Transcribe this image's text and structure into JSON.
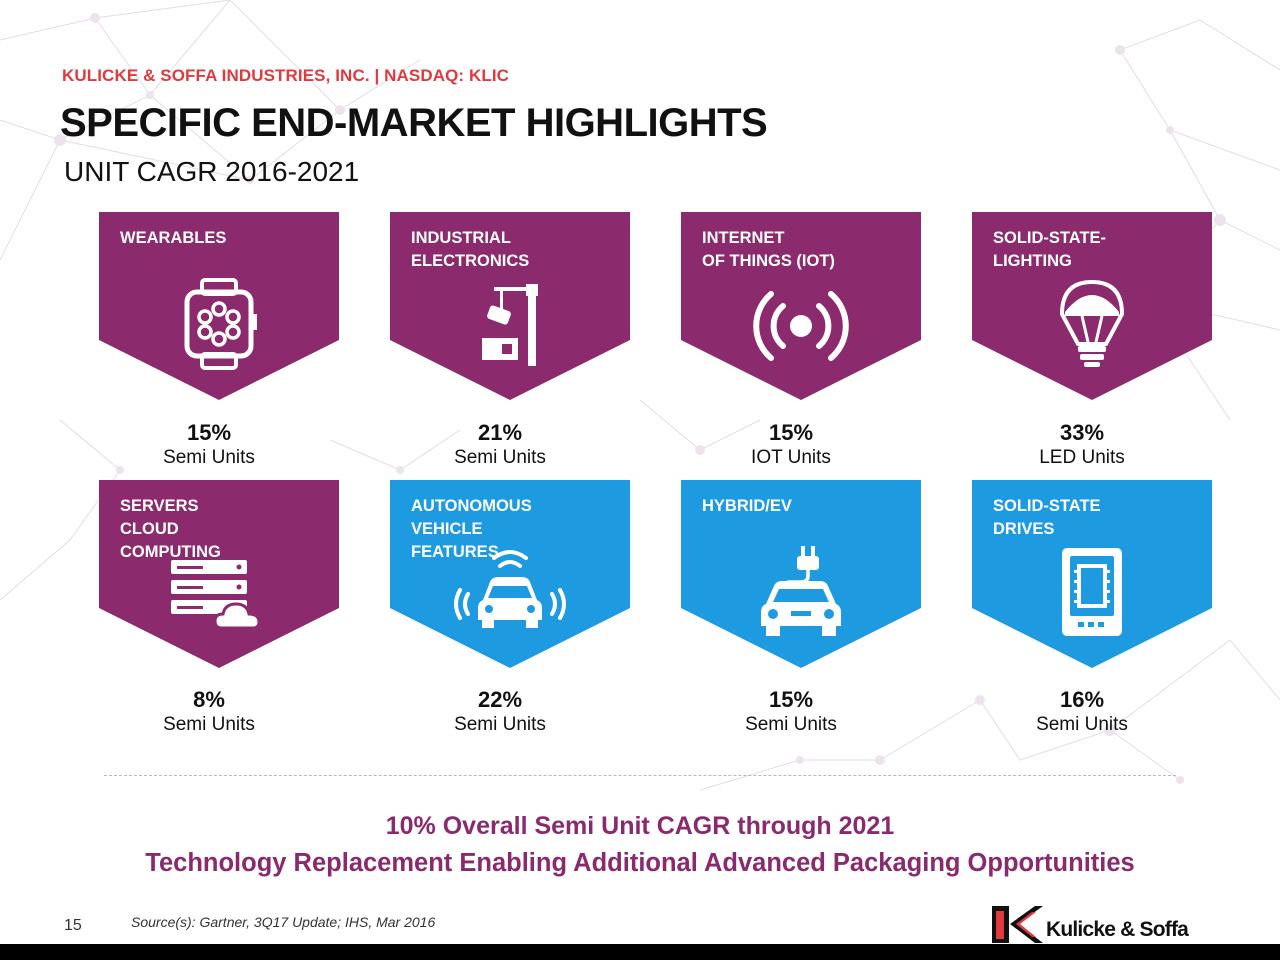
{
  "header": {
    "company_line": "KULICKE & SOFFA INDUSTRIES, INC.  |  NASDAQ: KLIC",
    "title": "SPECIFIC END-MARKET HIGHLIGHTS",
    "subtitle": "UNIT CAGR 2016-2021"
  },
  "colors": {
    "purple": "#8b2a6d",
    "blue": "#1e9be0",
    "accent_red": "#e03a3e",
    "summary_text": "#8a2a6e"
  },
  "markets": [
    {
      "label": "WEARABLES",
      "icon": "smartwatch-icon",
      "color": "purple",
      "cagr": "15%",
      "unit": "Semi Units"
    },
    {
      "label": "INDUSTRIAL\nELECTRONICS",
      "icon": "robotic-arm-icon",
      "color": "purple",
      "cagr": "21%",
      "unit": "Semi Units"
    },
    {
      "label": "INTERNET\nOF THINGS (IOT)",
      "icon": "wireless-signal-icon",
      "color": "purple",
      "cagr": "15%",
      "unit": "IOT Units"
    },
    {
      "label": "SOLID-STATE-\nLIGHTING",
      "icon": "light-bulb-icon",
      "color": "purple",
      "cagr": "33%",
      "unit": "LED Units"
    },
    {
      "label": "SERVERS\nCLOUD\nCOMPUTING",
      "icon": "server-cloud-icon",
      "color": "purple",
      "cagr": "8%",
      "unit": "Semi Units"
    },
    {
      "label": "AUTONOMOUS\nVEHICLE\nFEATURES",
      "icon": "connected-car-icon",
      "color": "blue",
      "cagr": "22%",
      "unit": "Semi Units"
    },
    {
      "label": "HYBRID/EV",
      "icon": "electric-car-icon",
      "color": "blue",
      "cagr": "15%",
      "unit": "Semi Units"
    },
    {
      "label": "SOLID-STATE\nDRIVES",
      "icon": "ssd-chip-icon",
      "color": "blue",
      "cagr": "16%",
      "unit": "Semi Units"
    }
  ],
  "summary": "10% Overall Semi Unit CAGR through 2021",
  "tagline": "Technology Replacement Enabling Additional Advanced Packaging Opportunities",
  "footer": {
    "page_number": "15",
    "source": "Source(s): Gartner, 3Q17 Update; IHS, Mar 2016",
    "logo_text": "Kulicke & Soffa"
  }
}
